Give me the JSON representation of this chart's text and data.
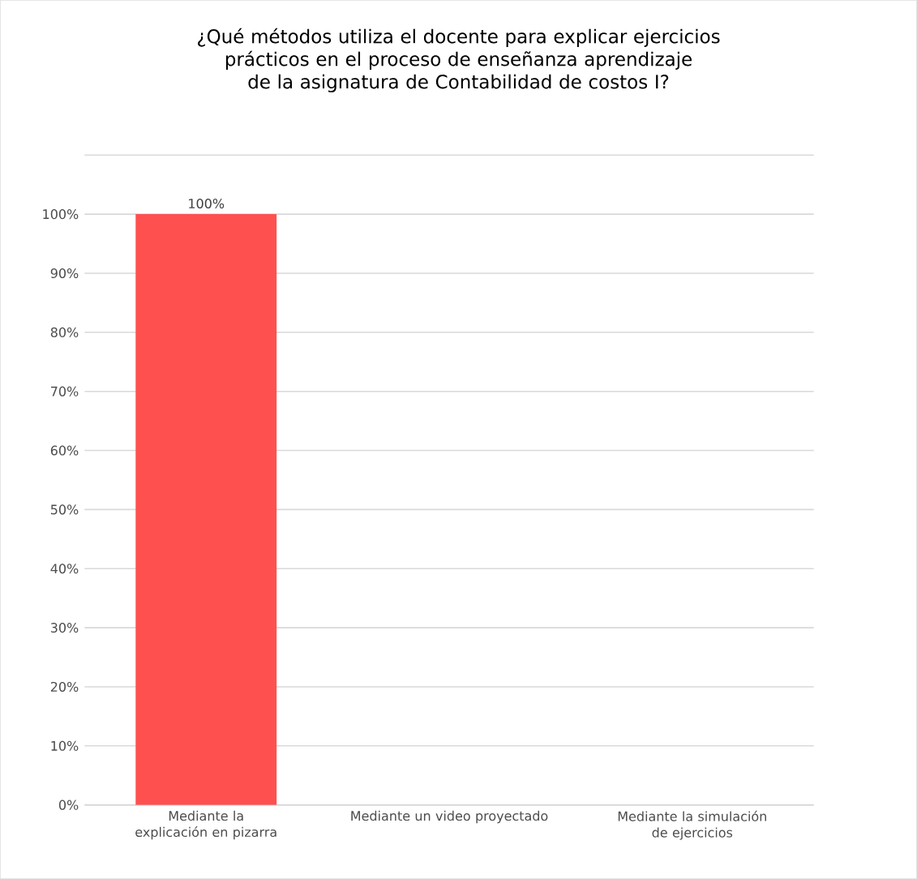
{
  "chart_data": {
    "type": "bar",
    "title": "¿Qué métodos utiliza el docente para explicar ejercicios prácticos en el proceso de enseñanza aprendizaje de la asignatura de Contabilidad de costos I?",
    "categories": [
      "Mediante la explicación en pizarra",
      "Mediante un video proyectado",
      "Mediante la simulación de ejercicios"
    ],
    "values": [
      100,
      0,
      0
    ],
    "value_labels": [
      "100%",
      null,
      null
    ],
    "color": "#ff5050",
    "ylim": [
      0,
      110
    ],
    "yticks": [
      {
        "value": 0,
        "label": "0%"
      },
      {
        "value": 10,
        "label": "10%"
      },
      {
        "value": 20,
        "label": "20%"
      },
      {
        "value": 30,
        "label": "30%"
      },
      {
        "value": 40,
        "label": "40%"
      },
      {
        "value": 50,
        "label": "50%"
      },
      {
        "value": 60,
        "label": "60%"
      },
      {
        "value": 70,
        "label": "70%"
      },
      {
        "value": 80,
        "label": "80%"
      },
      {
        "value": 90,
        "label": "90%"
      },
      {
        "value": 100,
        "label": "100%"
      },
      {
        "value": 110,
        "label": null
      }
    ],
    "grid": "y"
  }
}
